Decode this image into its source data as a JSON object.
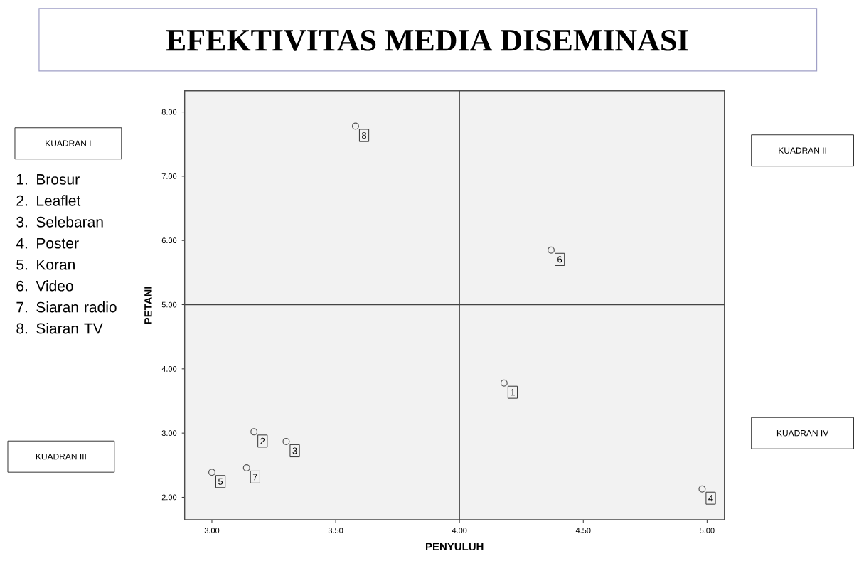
{
  "chart_data": {
    "type": "scatter",
    "title": "EFEKTIVITAS MEDIA DISEMINASI",
    "xlabel": "PENYULUH",
    "ylabel": "PETANI",
    "x": [
      4.18,
      3.17,
      3.3,
      4.98,
      3.0,
      4.37,
      3.14,
      3.58
    ],
    "values": [
      3.78,
      3.02,
      2.87,
      2.13,
      2.39,
      5.85,
      2.46,
      7.78
    ],
    "color": "#555555",
    "marker": "circle",
    "xlim": [
      2.89,
      5.07
    ],
    "ylim": [
      1.65,
      8.33
    ],
    "xticks": [
      {
        "value": 3,
        "label": "3.00"
      },
      {
        "value": 3.5,
        "label": "3.50"
      },
      {
        "value": 4,
        "label": "4.00"
      },
      {
        "value": 4.5,
        "label": "4.50"
      },
      {
        "value": 5,
        "label": "5.00"
      }
    ],
    "yticks": [
      {
        "value": 2,
        "label": "2.00"
      },
      {
        "value": 3,
        "label": "3.00"
      },
      {
        "value": 4,
        "label": "4.00"
      },
      {
        "value": 5,
        "label": "5.00"
      },
      {
        "value": 6,
        "label": "6.00"
      },
      {
        "value": 7,
        "label": "7.00"
      },
      {
        "value": 8,
        "label": "8.00"
      }
    ],
    "ref_lines": [
      {
        "axis": "x",
        "value": 4,
        "color": "#444444"
      },
      {
        "axis": "y",
        "value": 5,
        "color": "#444444"
      }
    ],
    "annotations": [
      "KUADRAN I",
      "KUADRAN II",
      "KUADRAN III",
      "KUADRAN IV",
      "1. Brosur",
      "2. Leaflet",
      "3. Selebaran",
      "4. Poster",
      "5. Koran",
      "6. Video",
      "7. Siaran radio",
      "8. Siaran TV",
      {
        "text": "1",
        "x": 4.18,
        "y": 3.78
      },
      {
        "text": "2",
        "x": 3.17,
        "y": 3.02
      },
      {
        "text": "3",
        "x": 3.3,
        "y": 2.87
      },
      {
        "text": "4",
        "x": 4.98,
        "y": 2.13
      },
      {
        "text": "5",
        "x": 3.0,
        "y": 2.39
      },
      {
        "text": "6",
        "x": 4.37,
        "y": 5.85
      },
      {
        "text": "7",
        "x": 3.14,
        "y": 2.46
      },
      {
        "text": "8",
        "x": 3.58,
        "y": 7.78
      }
    ]
  }
}
